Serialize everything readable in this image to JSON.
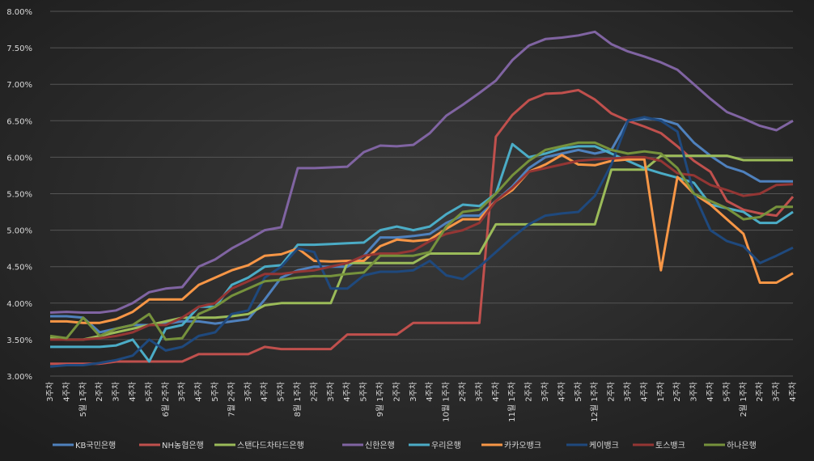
{
  "chart_data": {
    "type": "line",
    "categories": [
      "3주차",
      "4주차",
      "5월 1주차",
      "2주차",
      "3주차",
      "4주차",
      "5주차",
      "6월 2주차",
      "3주차",
      "4주차",
      "5주차",
      "7월 2주차",
      "3주차",
      "4주차",
      "5주차",
      "8월 1주차",
      "2주차",
      "3주차",
      "4주차",
      "5주차",
      "9월 1주차",
      "2주차",
      "3주차",
      "4주차",
      "10월 1주차",
      "2주차",
      "3주차",
      "4주차",
      "11월 1주차",
      "2주차",
      "3주차",
      "4주차",
      "5주차",
      "12월 1주차",
      "2주차",
      "3주차",
      "4주차",
      "1주차",
      "2주차",
      "3주차",
      "4주차",
      "5주차",
      "2월 1주차",
      "2주차",
      "3주차",
      "4주차"
    ],
    "ylim": [
      3,
      8
    ],
    "yticks": [
      {
        "value": 3,
        "label": "3.00%"
      },
      {
        "value": 3.5,
        "label": "3.50%"
      },
      {
        "value": 4,
        "label": "4.00%"
      },
      {
        "value": 4.5,
        "label": "4.50%"
      },
      {
        "value": 5,
        "label": "5.00%"
      },
      {
        "value": 5.5,
        "label": "5.50%"
      },
      {
        "value": 6,
        "label": "6.00%"
      },
      {
        "value": 6.5,
        "label": "6.50%"
      },
      {
        "value": 7,
        "label": "7.00%"
      },
      {
        "value": 7.5,
        "label": "7.50%"
      },
      {
        "value": 8,
        "label": "8.00%"
      }
    ],
    "grid": true,
    "legend": "bottom",
    "series": [
      {
        "name": "KB국민은행",
        "color": "#4f81bd",
        "values": [
          3.82,
          3.82,
          3.8,
          3.6,
          3.65,
          3.7,
          3.7,
          3.72,
          3.75,
          3.75,
          3.72,
          3.75,
          3.78,
          4.05,
          4.35,
          4.45,
          4.5,
          4.5,
          4.5,
          4.65,
          4.9,
          4.9,
          4.92,
          4.95,
          5.1,
          5.2,
          5.2,
          5.4,
          5.6,
          5.85,
          6.0,
          6.05,
          6.1,
          6.05,
          6.1,
          6.5,
          6.53,
          6.52,
          6.45,
          6.2,
          6.02,
          5.87,
          5.8,
          5.67,
          5.67,
          5.67
        ]
      },
      {
        "name": "NH농협은행",
        "color": "#c0504d",
        "values": [
          3.17,
          3.17,
          3.17,
          3.17,
          3.2,
          3.2,
          3.2,
          3.2,
          3.2,
          3.3,
          3.3,
          3.3,
          3.3,
          3.4,
          3.37,
          3.37,
          3.37,
          3.37,
          3.57,
          3.57,
          3.57,
          3.57,
          3.73,
          3.73,
          3.73,
          3.73,
          3.73,
          6.28,
          6.58,
          6.78,
          6.87,
          6.88,
          6.92,
          6.79,
          6.6,
          6.5,
          6.42,
          6.33,
          6.15,
          5.95,
          5.8,
          5.4,
          5.28,
          5.23,
          5.2,
          5.46
        ]
      },
      {
        "name": "스탠다드차타드은행",
        "color": "#9bbb59",
        "values": [
          3.52,
          3.5,
          3.5,
          3.55,
          3.6,
          3.65,
          3.7,
          3.75,
          3.8,
          3.8,
          3.8,
          3.82,
          3.85,
          3.97,
          4.0,
          4.0,
          4.0,
          4.0,
          4.55,
          4.55,
          4.55,
          4.55,
          4.55,
          4.68,
          4.68,
          4.68,
          4.68,
          5.08,
          5.08,
          5.08,
          5.08,
          5.08,
          5.08,
          5.08,
          5.83,
          5.83,
          5.83,
          6.02,
          6.02,
          6.02,
          6.02,
          6.02,
          5.96,
          5.96,
          5.96,
          5.96
        ]
      },
      {
        "name": "신한은행",
        "color": "#8064a2",
        "values": [
          3.87,
          3.88,
          3.87,
          3.87,
          3.9,
          4.0,
          4.15,
          4.2,
          4.22,
          4.5,
          4.6,
          4.75,
          4.87,
          5.0,
          5.04,
          5.85,
          5.85,
          5.86,
          5.87,
          6.07,
          6.16,
          6.15,
          6.17,
          6.33,
          6.57,
          6.72,
          6.88,
          7.05,
          7.33,
          7.53,
          7.62,
          7.64,
          7.67,
          7.72,
          7.55,
          7.45,
          7.38,
          7.3,
          7.2,
          7.0,
          6.8,
          6.62,
          6.53,
          6.43,
          6.37,
          6.5
        ]
      },
      {
        "name": "우리은행",
        "color": "#4bacc6",
        "values": [
          3.4,
          3.4,
          3.4,
          3.4,
          3.42,
          3.5,
          3.2,
          3.65,
          3.7,
          3.95,
          3.95,
          4.25,
          4.35,
          4.5,
          4.52,
          4.8,
          4.8,
          4.81,
          4.82,
          4.83,
          5.0,
          5.05,
          5.0,
          5.05,
          5.22,
          5.35,
          5.33,
          5.5,
          6.18,
          6.0,
          6.05,
          6.12,
          6.15,
          6.15,
          6.05,
          5.95,
          5.85,
          5.78,
          5.72,
          5.65,
          5.35,
          5.3,
          5.25,
          5.1,
          5.1,
          5.25
        ]
      },
      {
        "name": "카카오뱅크",
        "color": "#f79646",
        "values": [
          3.75,
          3.75,
          3.73,
          3.73,
          3.78,
          3.88,
          4.05,
          4.05,
          4.05,
          4.25,
          4.35,
          4.45,
          4.52,
          4.65,
          4.67,
          4.75,
          4.58,
          4.57,
          4.58,
          4.58,
          4.78,
          4.87,
          4.85,
          4.87,
          5.02,
          5.15,
          5.15,
          5.4,
          5.55,
          5.8,
          5.9,
          6.03,
          5.9,
          5.89,
          5.95,
          5.97,
          5.97,
          4.45,
          5.73,
          5.5,
          5.35,
          5.15,
          4.95,
          4.28,
          4.28,
          4.41
        ]
      },
      {
        "name": "케이뱅크",
        "color": "#1f497d",
        "values": [
          3.13,
          3.15,
          3.15,
          3.18,
          3.22,
          3.28,
          3.5,
          3.35,
          3.4,
          3.55,
          3.6,
          3.85,
          3.9,
          4.35,
          4.5,
          4.75,
          4.7,
          4.2,
          4.2,
          4.38,
          4.43,
          4.43,
          4.45,
          4.58,
          4.38,
          4.33,
          4.5,
          4.7,
          4.9,
          5.08,
          5.2,
          5.23,
          5.25,
          5.47,
          5.9,
          6.5,
          6.55,
          6.5,
          6.35,
          5.5,
          5.0,
          4.85,
          4.78,
          4.55,
          4.65,
          4.76
        ]
      },
      {
        "name": "토스뱅크",
        "color": "#943634",
        "values": [
          3.5,
          3.5,
          3.5,
          3.52,
          3.55,
          3.6,
          3.7,
          3.7,
          3.8,
          3.95,
          4.0,
          4.2,
          4.3,
          4.4,
          4.4,
          4.43,
          4.45,
          4.5,
          4.55,
          4.65,
          4.68,
          4.68,
          4.72,
          4.85,
          4.95,
          5.0,
          5.1,
          5.4,
          5.58,
          5.8,
          5.85,
          5.9,
          5.95,
          5.97,
          5.98,
          6.0,
          6.0,
          5.95,
          5.78,
          5.75,
          5.62,
          5.55,
          5.47,
          5.5,
          5.62,
          5.63
        ]
      },
      {
        "name": "하나은행",
        "color": "#76923c",
        "values": [
          3.55,
          3.52,
          3.8,
          3.55,
          3.65,
          3.7,
          3.85,
          3.5,
          3.52,
          3.85,
          3.95,
          4.1,
          4.2,
          4.3,
          4.32,
          4.35,
          4.37,
          4.37,
          4.4,
          4.42,
          4.65,
          4.65,
          4.65,
          4.7,
          5.05,
          5.25,
          5.28,
          5.5,
          5.75,
          5.95,
          6.1,
          6.15,
          6.2,
          6.2,
          6.1,
          6.05,
          6.08,
          6.05,
          5.85,
          5.5,
          5.4,
          5.3,
          5.15,
          5.18,
          5.32,
          5.32
        ]
      }
    ]
  }
}
